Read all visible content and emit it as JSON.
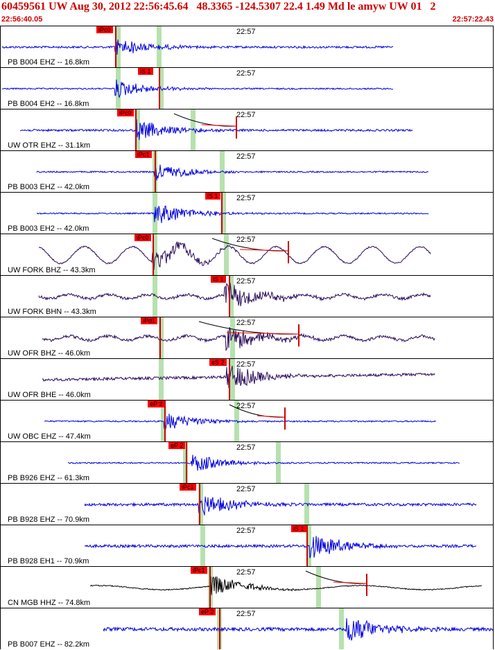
{
  "header": {
    "title": "60459561 UW Aug 30, 2012 22:56:45.64   48.3365 -124.5307 22.4 1.49 Md le amyw UW 01   2",
    "start_time": "22:56:40.05",
    "end_time": "22:57:22.43"
  },
  "colors": {
    "header_text": "#d00000",
    "trace_blue": "#0000e0",
    "trace_purple": "#2a0a5a",
    "trace_black": "#000000",
    "pick_flag": "#ff0000",
    "window_band": "#a9dca0"
  },
  "traces": [
    {
      "label": "PB B004 EHZ -- 16.8km",
      "time_tick": "22:57",
      "pick": "iPc0",
      "color": "blue"
    },
    {
      "label": "PB B004 EH2 -- 16.8km",
      "time_tick": "22:57",
      "pick": "iS 1",
      "color": "blue"
    },
    {
      "label": "UW OTR EHZ -- 31.1km",
      "time_tick": "22:57",
      "pick": "iPc0",
      "color": "blue"
    },
    {
      "label": "PB B003 EHZ -- 42.0km",
      "time_tick": "22:57",
      "pick": "iPc1",
      "color": "blue"
    },
    {
      "label": "PB B003 EH2 -- 42.0km",
      "time_tick": "22:57",
      "pick": "iS 1",
      "color": "blue"
    },
    {
      "label": "UW FORK BHZ -- 43.3km",
      "time_tick": "22:57",
      "pick": "iPc0",
      "color": "purple"
    },
    {
      "label": "UW FORK BHN -- 43.3km",
      "time_tick": "22:57",
      "pick": "iS 1",
      "color": "purple"
    },
    {
      "label": "UW OFR BHZ -- 46.0km",
      "time_tick": "22:57",
      "pick": "iPd1",
      "color": "purple"
    },
    {
      "label": "UW OFR BHE -- 46.0km",
      "time_tick": "22:57",
      "pick": "eS 2",
      "color": "purple"
    },
    {
      "label": "UW OBC EHZ -- 47.4km",
      "time_tick": "22:57",
      "pick": "eP 2",
      "color": "blue"
    },
    {
      "label": "PB B926 EHZ -- 61.3km",
      "time_tick": "22:57",
      "pick": "eP 2",
      "color": "blue"
    },
    {
      "label": "PB B928 EHZ -- 70.9km",
      "time_tick": "22:57",
      "pick": "iPc1",
      "color": "blue"
    },
    {
      "label": "PB B928 EH1 -- 70.9km",
      "time_tick": "22:57",
      "pick": "iS 1",
      "color": "blue"
    },
    {
      "label": "CN MGB HHZ -- 74.8km",
      "time_tick": "22:57",
      "pick": "iPc1",
      "color": "black"
    },
    {
      "label": "PB B007 EHZ -- 82.2km",
      "time_tick": "22:57",
      "pick": "eP 2",
      "color": "blue"
    }
  ]
}
